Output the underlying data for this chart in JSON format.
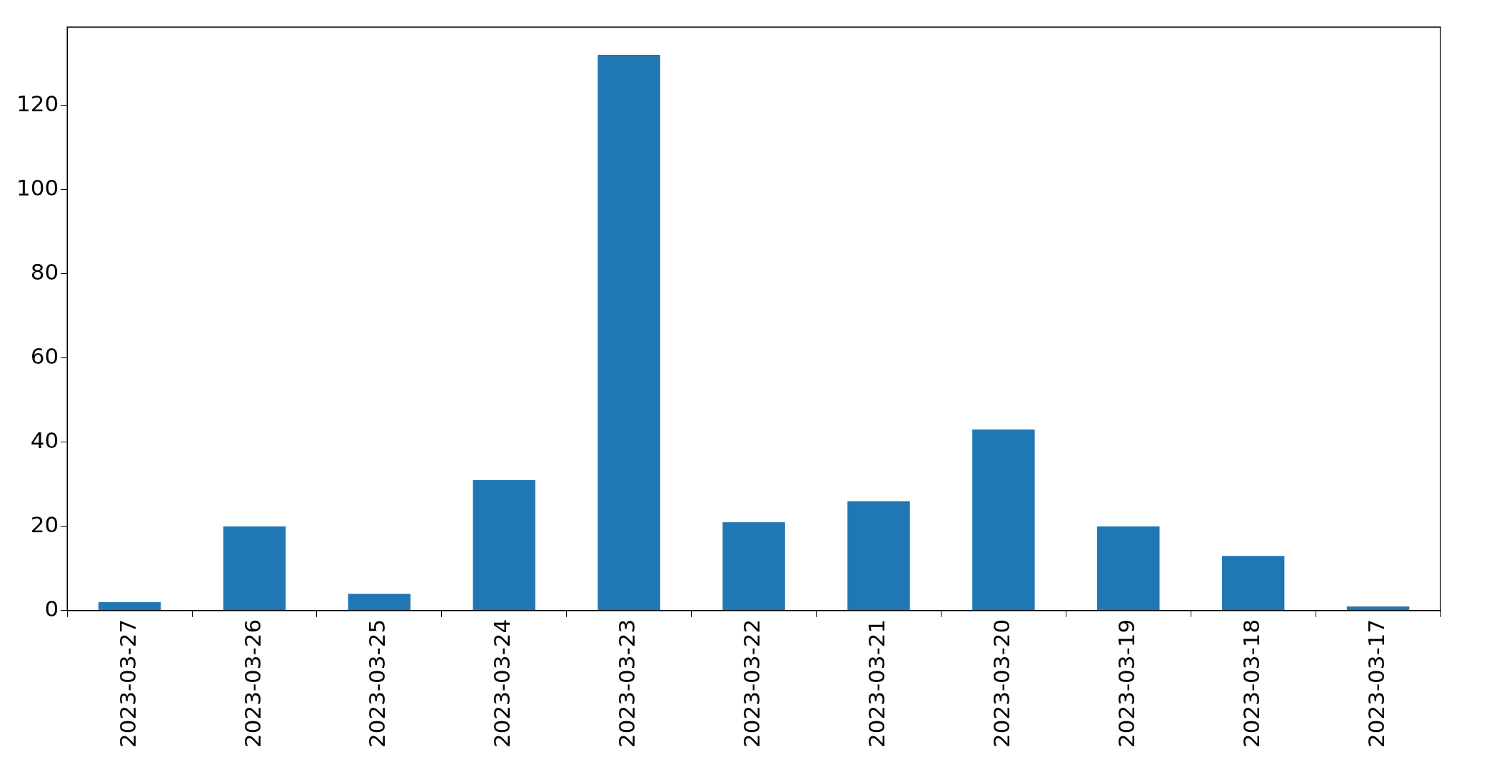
{
  "chart_data": {
    "type": "bar",
    "categories": [
      "2023-03-27",
      "2023-03-26",
      "2023-03-25",
      "2023-03-24",
      "2023-03-23",
      "2023-03-22",
      "2023-03-21",
      "2023-03-20",
      "2023-03-19",
      "2023-03-18",
      "2023-03-17"
    ],
    "values": [
      2,
      20,
      4,
      31,
      132,
      21,
      26,
      43,
      20,
      13,
      1
    ],
    "color": "#1f77b4",
    "ylim": [
      0,
      138.6
    ],
    "yticks": [
      0,
      20,
      40,
      60,
      80,
      100,
      120
    ],
    "grid": false,
    "legend": false
  }
}
